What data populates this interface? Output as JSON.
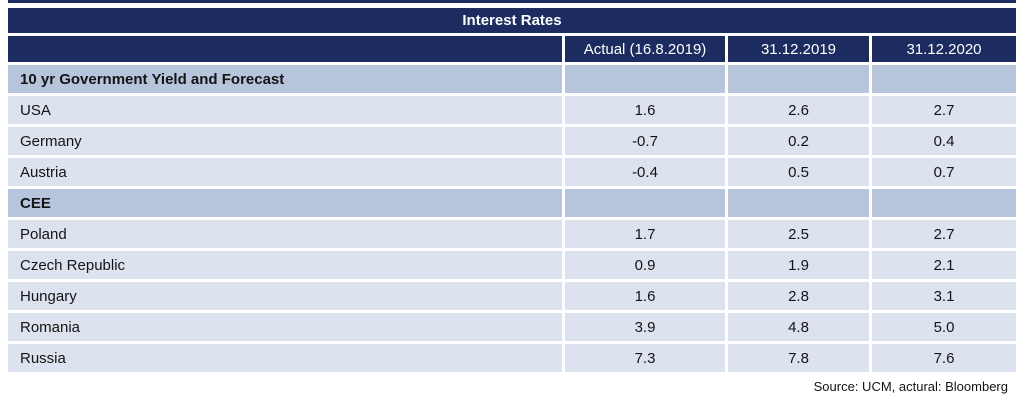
{
  "title": "Interest Rates",
  "colors": {
    "header_navy": "#1c2b60",
    "section_row_blue": "#b7c5dc",
    "data_row_blue": "#dde3ee",
    "header_text": "#ffffff",
    "body_text": "#141414"
  },
  "table": {
    "columns": [
      "",
      "Actual (16.8.2019)",
      "31.12.2019",
      "31.12.2020"
    ],
    "rows": [
      {
        "type": "section",
        "label": "10 yr Government Yield and Forecast",
        "values": [
          "",
          "",
          ""
        ]
      },
      {
        "type": "data",
        "label": "USA",
        "values": [
          "1.6",
          "2.6",
          "2.7"
        ]
      },
      {
        "type": "data",
        "label": "Germany",
        "values": [
          "-0.7",
          "0.2",
          "0.4"
        ]
      },
      {
        "type": "data",
        "label": "Austria",
        "values": [
          "-0.4",
          "0.5",
          "0.7"
        ]
      },
      {
        "type": "section",
        "label": "CEE",
        "values": [
          "",
          "",
          ""
        ]
      },
      {
        "type": "data",
        "label": "Poland",
        "values": [
          "1.7",
          "2.5",
          "2.7"
        ]
      },
      {
        "type": "data",
        "label": "Czech Republic",
        "values": [
          "0.9",
          "1.9",
          "2.1"
        ]
      },
      {
        "type": "data",
        "label": "Hungary",
        "values": [
          "1.6",
          "2.8",
          "3.1"
        ]
      },
      {
        "type": "data",
        "label": "Romania",
        "values": [
          "3.9",
          "4.8",
          "5.0"
        ]
      },
      {
        "type": "data",
        "label": "Russia",
        "values": [
          "7.3",
          "7.8",
          "7.6"
        ]
      }
    ]
  },
  "footer": {
    "source_note": "Source: UCM, actural: Bloomberg"
  }
}
